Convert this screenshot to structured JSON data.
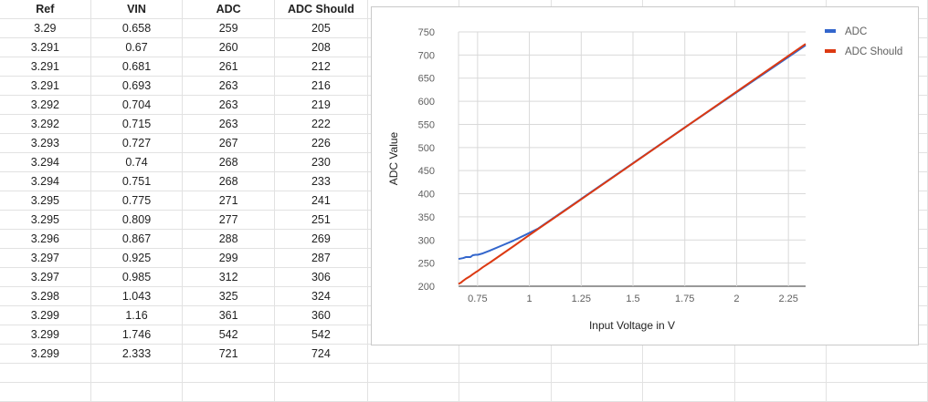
{
  "table": {
    "headers": [
      "Ref",
      "VIN",
      "ADC",
      "ADC Should"
    ],
    "rows": [
      [
        "3.29",
        "0.658",
        "259",
        "205"
      ],
      [
        "3.291",
        "0.67",
        "260",
        "208"
      ],
      [
        "3.291",
        "0.681",
        "261",
        "212"
      ],
      [
        "3.291",
        "0.693",
        "263",
        "216"
      ],
      [
        "3.292",
        "0.704",
        "263",
        "219"
      ],
      [
        "3.292",
        "0.715",
        "263",
        "222"
      ],
      [
        "3.293",
        "0.727",
        "267",
        "226"
      ],
      [
        "3.294",
        "0.74",
        "268",
        "230"
      ],
      [
        "3.294",
        "0.751",
        "268",
        "233"
      ],
      [
        "3.295",
        "0.775",
        "271",
        "241"
      ],
      [
        "3.295",
        "0.809",
        "277",
        "251"
      ],
      [
        "3.296",
        "0.867",
        "288",
        "269"
      ],
      [
        "3.297",
        "0.925",
        "299",
        "287"
      ],
      [
        "3.297",
        "0.985",
        "312",
        "306"
      ],
      [
        "3.298",
        "1.043",
        "325",
        "324"
      ],
      [
        "3.299",
        "1.16",
        "361",
        "360"
      ],
      [
        "3.299",
        "1.746",
        "542",
        "542"
      ],
      [
        "3.299",
        "2.333",
        "721",
        "724"
      ]
    ]
  },
  "chart_data": {
    "type": "line",
    "title": "",
    "xlabel": "Input Voltage in V",
    "ylabel": "ADC Value",
    "x": [
      0.658,
      0.67,
      0.681,
      0.693,
      0.704,
      0.715,
      0.727,
      0.74,
      0.751,
      0.775,
      0.809,
      0.867,
      0.925,
      0.985,
      1.043,
      1.16,
      1.746,
      2.333
    ],
    "series": [
      {
        "name": "ADC",
        "color": "#3366cc",
        "values": [
          259,
          260,
          261,
          263,
          263,
          263,
          267,
          268,
          268,
          271,
          277,
          288,
          299,
          312,
          325,
          361,
          542,
          721
        ]
      },
      {
        "name": "ADC Should",
        "color": "#dc3912",
        "values": [
          205,
          208,
          212,
          216,
          219,
          222,
          226,
          230,
          233,
          241,
          251,
          269,
          287,
          306,
          324,
          360,
          542,
          724
        ]
      }
    ],
    "xlim": [
      0.658,
      2.333
    ],
    "ylim": [
      200,
      750
    ],
    "x_ticks": [
      0.75,
      1,
      1.25,
      1.5,
      1.75,
      2,
      2.25
    ],
    "x_tick_labels": [
      "0.75",
      "1",
      "1.25",
      "1.5",
      "1.75",
      "2",
      "2.25"
    ],
    "y_ticks": [
      200,
      250,
      300,
      350,
      400,
      450,
      500,
      550,
      600,
      650,
      700,
      750
    ],
    "y_tick_labels": [
      "200",
      "250",
      "300",
      "350",
      "400",
      "450",
      "500",
      "550",
      "600",
      "650",
      "700",
      "750"
    ],
    "grid": true,
    "legend": "top-right"
  }
}
